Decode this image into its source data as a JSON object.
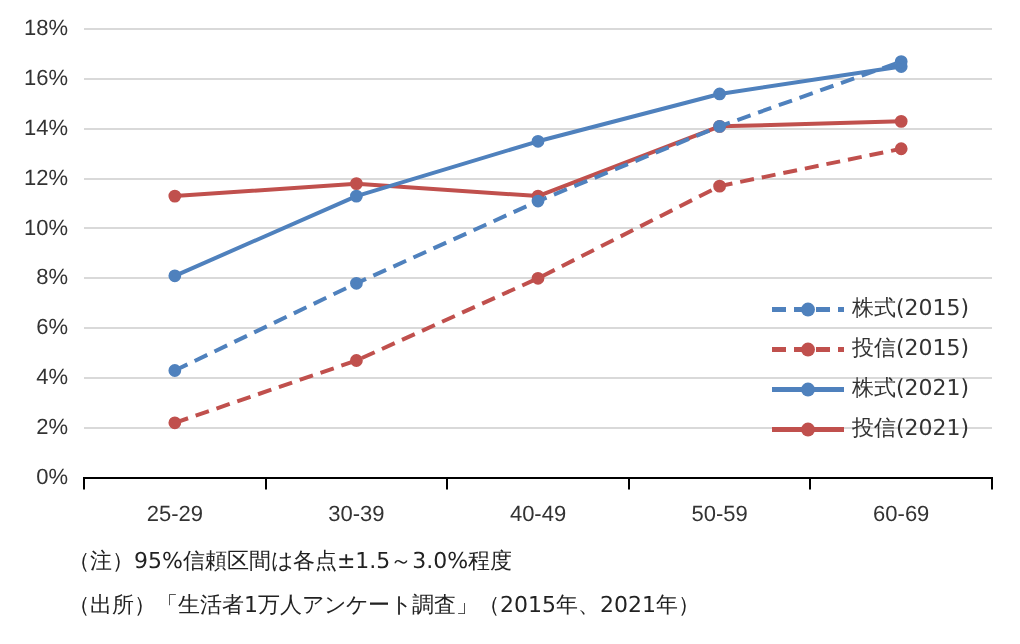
{
  "chart_data": {
    "type": "line",
    "categories": [
      "25-29",
      "30-39",
      "40-49",
      "50-59",
      "60-69"
    ],
    "series": [
      {
        "name": "株式(2015)",
        "color": "#4f81bd",
        "line_style": "dashed",
        "values": [
          4.3,
          7.8,
          11.1,
          14.1,
          16.7
        ]
      },
      {
        "name": "投信(2015)",
        "color": "#c0504d",
        "line_style": "dashed",
        "values": [
          2.2,
          4.7,
          8.0,
          11.7,
          13.2
        ]
      },
      {
        "name": "株式(2021)",
        "color": "#4f81bd",
        "line_style": "solid",
        "values": [
          8.1,
          11.3,
          13.5,
          15.4,
          16.5
        ]
      },
      {
        "name": "投信(2021)",
        "color": "#c0504d",
        "line_style": "solid",
        "values": [
          11.3,
          11.8,
          11.3,
          14.1,
          14.3
        ]
      }
    ],
    "ylim": [
      0,
      18
    ],
    "yticks": [
      {
        "value": 0,
        "label": "0%"
      },
      {
        "value": 2,
        "label": "2%"
      },
      {
        "value": 4,
        "label": "4%"
      },
      {
        "value": 6,
        "label": "6%"
      },
      {
        "value": 8,
        "label": "8%"
      },
      {
        "value": 10,
        "label": "10%"
      },
      {
        "value": 12,
        "label": "12%"
      },
      {
        "value": 14,
        "label": "14%"
      },
      {
        "value": 16,
        "label": "16%"
      },
      {
        "value": 18,
        "label": "18%"
      }
    ],
    "grid": "y",
    "legend": "right",
    "marker": "circle",
    "annotations": [
      "（注）95%信頼区間は各点±1.5～3.0%程度",
      "（出所）「生活者1万人アンケート調査」（2015年、2021年）"
    ]
  }
}
